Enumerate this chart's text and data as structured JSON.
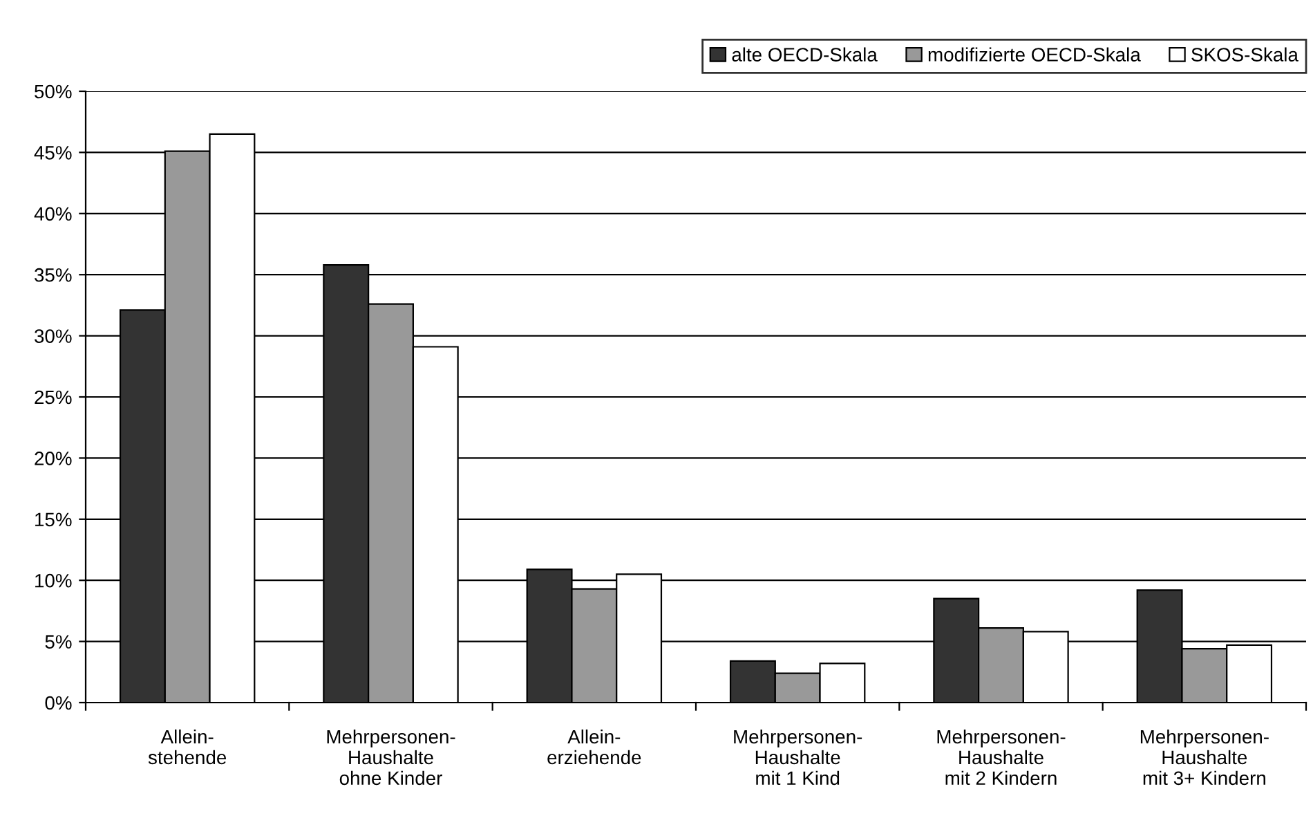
{
  "chart_data": {
    "type": "bar",
    "categories": [
      "Allein-\nstehende",
      "Mehrpersonen-\nHaushalte\nohne Kinder",
      "Allein-\nerziehende",
      "Mehrpersonen-\nHaushalte\nmit 1 Kind",
      "Mehrpersonen-\nHaushalte\nmit 2 Kindern",
      "Mehrpersonen-\nHaushalte\nmit 3+ Kindern"
    ],
    "series": [
      {
        "name": "alte OECD-Skala",
        "color": "#333333",
        "values": [
          32.1,
          35.8,
          10.9,
          3.4,
          8.5,
          9.2
        ]
      },
      {
        "name": "modifizierte OECD-Skala",
        "color": "#999999",
        "values": [
          45.1,
          32.6,
          9.3,
          2.4,
          6.1,
          4.4
        ]
      },
      {
        "name": "SKOS-Skala",
        "color": "#ffffff",
        "values": [
          46.5,
          29.1,
          10.5,
          3.2,
          5.8,
          4.7
        ]
      }
    ],
    "ylim": [
      0,
      50
    ],
    "yticks": [
      {
        "value": 0,
        "label": "0%"
      },
      {
        "value": 5,
        "label": "5%"
      },
      {
        "value": 10,
        "label": "10%"
      },
      {
        "value": 15,
        "label": "15%"
      },
      {
        "value": 20,
        "label": "20%"
      },
      {
        "value": 25,
        "label": "25%"
      },
      {
        "value": 30,
        "label": "30%"
      },
      {
        "value": 35,
        "label": "35%"
      },
      {
        "value": 40,
        "label": "40%"
      },
      {
        "value": 45,
        "label": "45%"
      },
      {
        "value": 50,
        "label": "50%"
      }
    ],
    "grid": "y",
    "legend": "top right"
  }
}
